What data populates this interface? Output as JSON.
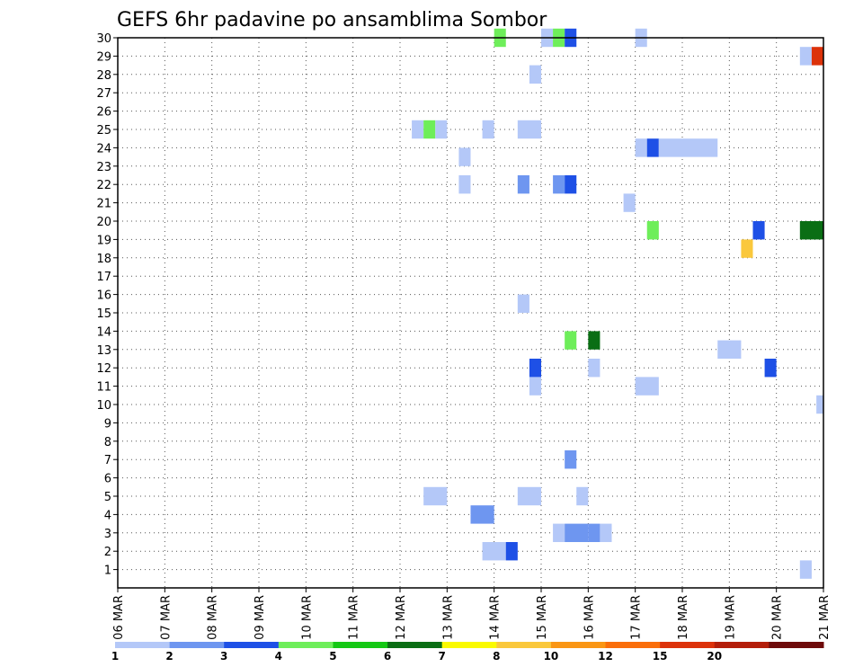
{
  "chart_data": {
    "type": "heatmap",
    "title": "GEFS 6hr padavine po ansamblima Sombor",
    "xlabel": "",
    "ylabel": "",
    "x_tick_labels": [
      "06 MAR",
      "07 MAR",
      "08 MAR",
      "09 MAR",
      "10 MAR",
      "11 MAR",
      "12 MAR",
      "13 MAR",
      "14 MAR",
      "15 MAR",
      "16 MAR",
      "17 MAR",
      "18 MAR",
      "19 MAR",
      "20 MAR",
      "21 MAR"
    ],
    "x_range_days": [
      0,
      15
    ],
    "y_tick_labels": [
      "1",
      "2",
      "3",
      "4",
      "5",
      "6",
      "7",
      "8",
      "9",
      "10",
      "11",
      "12",
      "13",
      "14",
      "15",
      "16",
      "17",
      "18",
      "19",
      "20",
      "21",
      "22",
      "23",
      "24",
      "25",
      "26",
      "27",
      "28",
      "29",
      "30"
    ],
    "y_range": [
      0,
      30
    ],
    "grid": true,
    "colorbar": {
      "placement": "bottom",
      "colors": [
        "#b4c8f8",
        "#6e96f0",
        "#1e50e6",
        "#6eee5a",
        "#14c814",
        "#0a6e14",
        "#fafa00",
        "#fac83c",
        "#fa9614",
        "#fa6e0a",
        "#dc320a",
        "#b41e0a",
        "#6e0a0a"
      ],
      "labels": [
        "1",
        "2",
        "3",
        "4",
        "5",
        "6",
        "7",
        "8",
        "10",
        "12",
        "15",
        "20"
      ]
    },
    "cells": [
      {
        "member": 1,
        "t": 14.5,
        "len": 0.25,
        "c": 0
      },
      {
        "member": 2,
        "t": 7.75,
        "len": 0.5,
        "c": 0
      },
      {
        "member": 2,
        "t": 8.25,
        "len": 0.25,
        "c": 2
      },
      {
        "member": 3,
        "t": 9.25,
        "len": 0.25,
        "c": 0
      },
      {
        "member": 3,
        "t": 9.5,
        "len": 0.5,
        "c": 1
      },
      {
        "member": 3,
        "t": 10.0,
        "len": 0.25,
        "c": 1
      },
      {
        "member": 3,
        "t": 10.25,
        "len": 0.25,
        "c": 0
      },
      {
        "member": 4,
        "t": 7.5,
        "len": 0.5,
        "c": 1
      },
      {
        "member": 5,
        "t": 6.5,
        "len": 0.5,
        "c": 0
      },
      {
        "member": 5,
        "t": 8.5,
        "len": 0.5,
        "c": 0
      },
      {
        "member": 5,
        "t": 9.75,
        "len": 0.25,
        "c": 0
      },
      {
        "member": 7,
        "t": 9.5,
        "len": 0.25,
        "c": 1
      },
      {
        "member": 10,
        "t": 14.85,
        "len": 0.15,
        "c": 0
      },
      {
        "member": 11,
        "t": 8.75,
        "len": 0.25,
        "c": 0
      },
      {
        "member": 11,
        "t": 11.0,
        "len": 0.5,
        "c": 0
      },
      {
        "member": 12,
        "t": 8.75,
        "len": 0.25,
        "c": 2
      },
      {
        "member": 12,
        "t": 10.0,
        "len": 0.25,
        "c": 0
      },
      {
        "member": 12,
        "t": 13.75,
        "len": 0.25,
        "c": 2
      },
      {
        "member": 13,
        "t": 12.75,
        "len": 0.5,
        "c": 0
      },
      {
        "member": 13.5,
        "t": 9.5,
        "len": 0.25,
        "c": 3
      },
      {
        "member": 13.5,
        "t": 10.0,
        "len": 0.25,
        "c": 5
      },
      {
        "member": 15.5,
        "t": 8.5,
        "len": 0.25,
        "c": 0
      },
      {
        "member": 18.5,
        "t": 13.25,
        "len": 0.25,
        "c": 7
      },
      {
        "member": 19.5,
        "t": 11.25,
        "len": 0.25,
        "c": 3
      },
      {
        "member": 19.5,
        "t": 13.5,
        "len": 0.25,
        "c": 2
      },
      {
        "member": 19.5,
        "t": 14.5,
        "len": 0.5,
        "c": 5
      },
      {
        "member": 21,
        "t": 10.75,
        "len": 0.25,
        "c": 0
      },
      {
        "member": 22,
        "t": 7.25,
        "len": 0.25,
        "c": 0
      },
      {
        "member": 22,
        "t": 8.5,
        "len": 0.25,
        "c": 1
      },
      {
        "member": 22,
        "t": 9.25,
        "len": 0.25,
        "c": 1
      },
      {
        "member": 22,
        "t": 9.5,
        "len": 0.25,
        "c": 2
      },
      {
        "member": 23.5,
        "t": 7.25,
        "len": 0.25,
        "c": 0
      },
      {
        "member": 24,
        "t": 11.0,
        "len": 0.25,
        "c": 0
      },
      {
        "member": 24,
        "t": 11.25,
        "len": 0.25,
        "c": 2
      },
      {
        "member": 24,
        "t": 11.5,
        "len": 1.25,
        "c": 0
      },
      {
        "member": 25,
        "t": 6.25,
        "len": 0.25,
        "c": 0
      },
      {
        "member": 25,
        "t": 6.5,
        "len": 0.25,
        "c": 3
      },
      {
        "member": 25,
        "t": 6.75,
        "len": 0.25,
        "c": 0
      },
      {
        "member": 25,
        "t": 7.75,
        "len": 0.25,
        "c": 0
      },
      {
        "member": 25,
        "t": 8.5,
        "len": 0.5,
        "c": 0
      },
      {
        "member": 28,
        "t": 8.75,
        "len": 0.25,
        "c": 0
      },
      {
        "member": 29,
        "t": 14.5,
        "len": 0.25,
        "c": 0
      },
      {
        "member": 29,
        "t": 14.75,
        "len": 0.25,
        "c": 10
      },
      {
        "member": 30,
        "t": 8.0,
        "len": 0.25,
        "c": 3
      },
      {
        "member": 30,
        "t": 9.0,
        "len": 0.25,
        "c": 0
      },
      {
        "member": 30,
        "t": 9.25,
        "len": 0.25,
        "c": 3
      },
      {
        "member": 30,
        "t": 9.5,
        "len": 0.25,
        "c": 2
      },
      {
        "member": 30,
        "t": 11.0,
        "len": 0.25,
        "c": 0
      }
    ]
  }
}
